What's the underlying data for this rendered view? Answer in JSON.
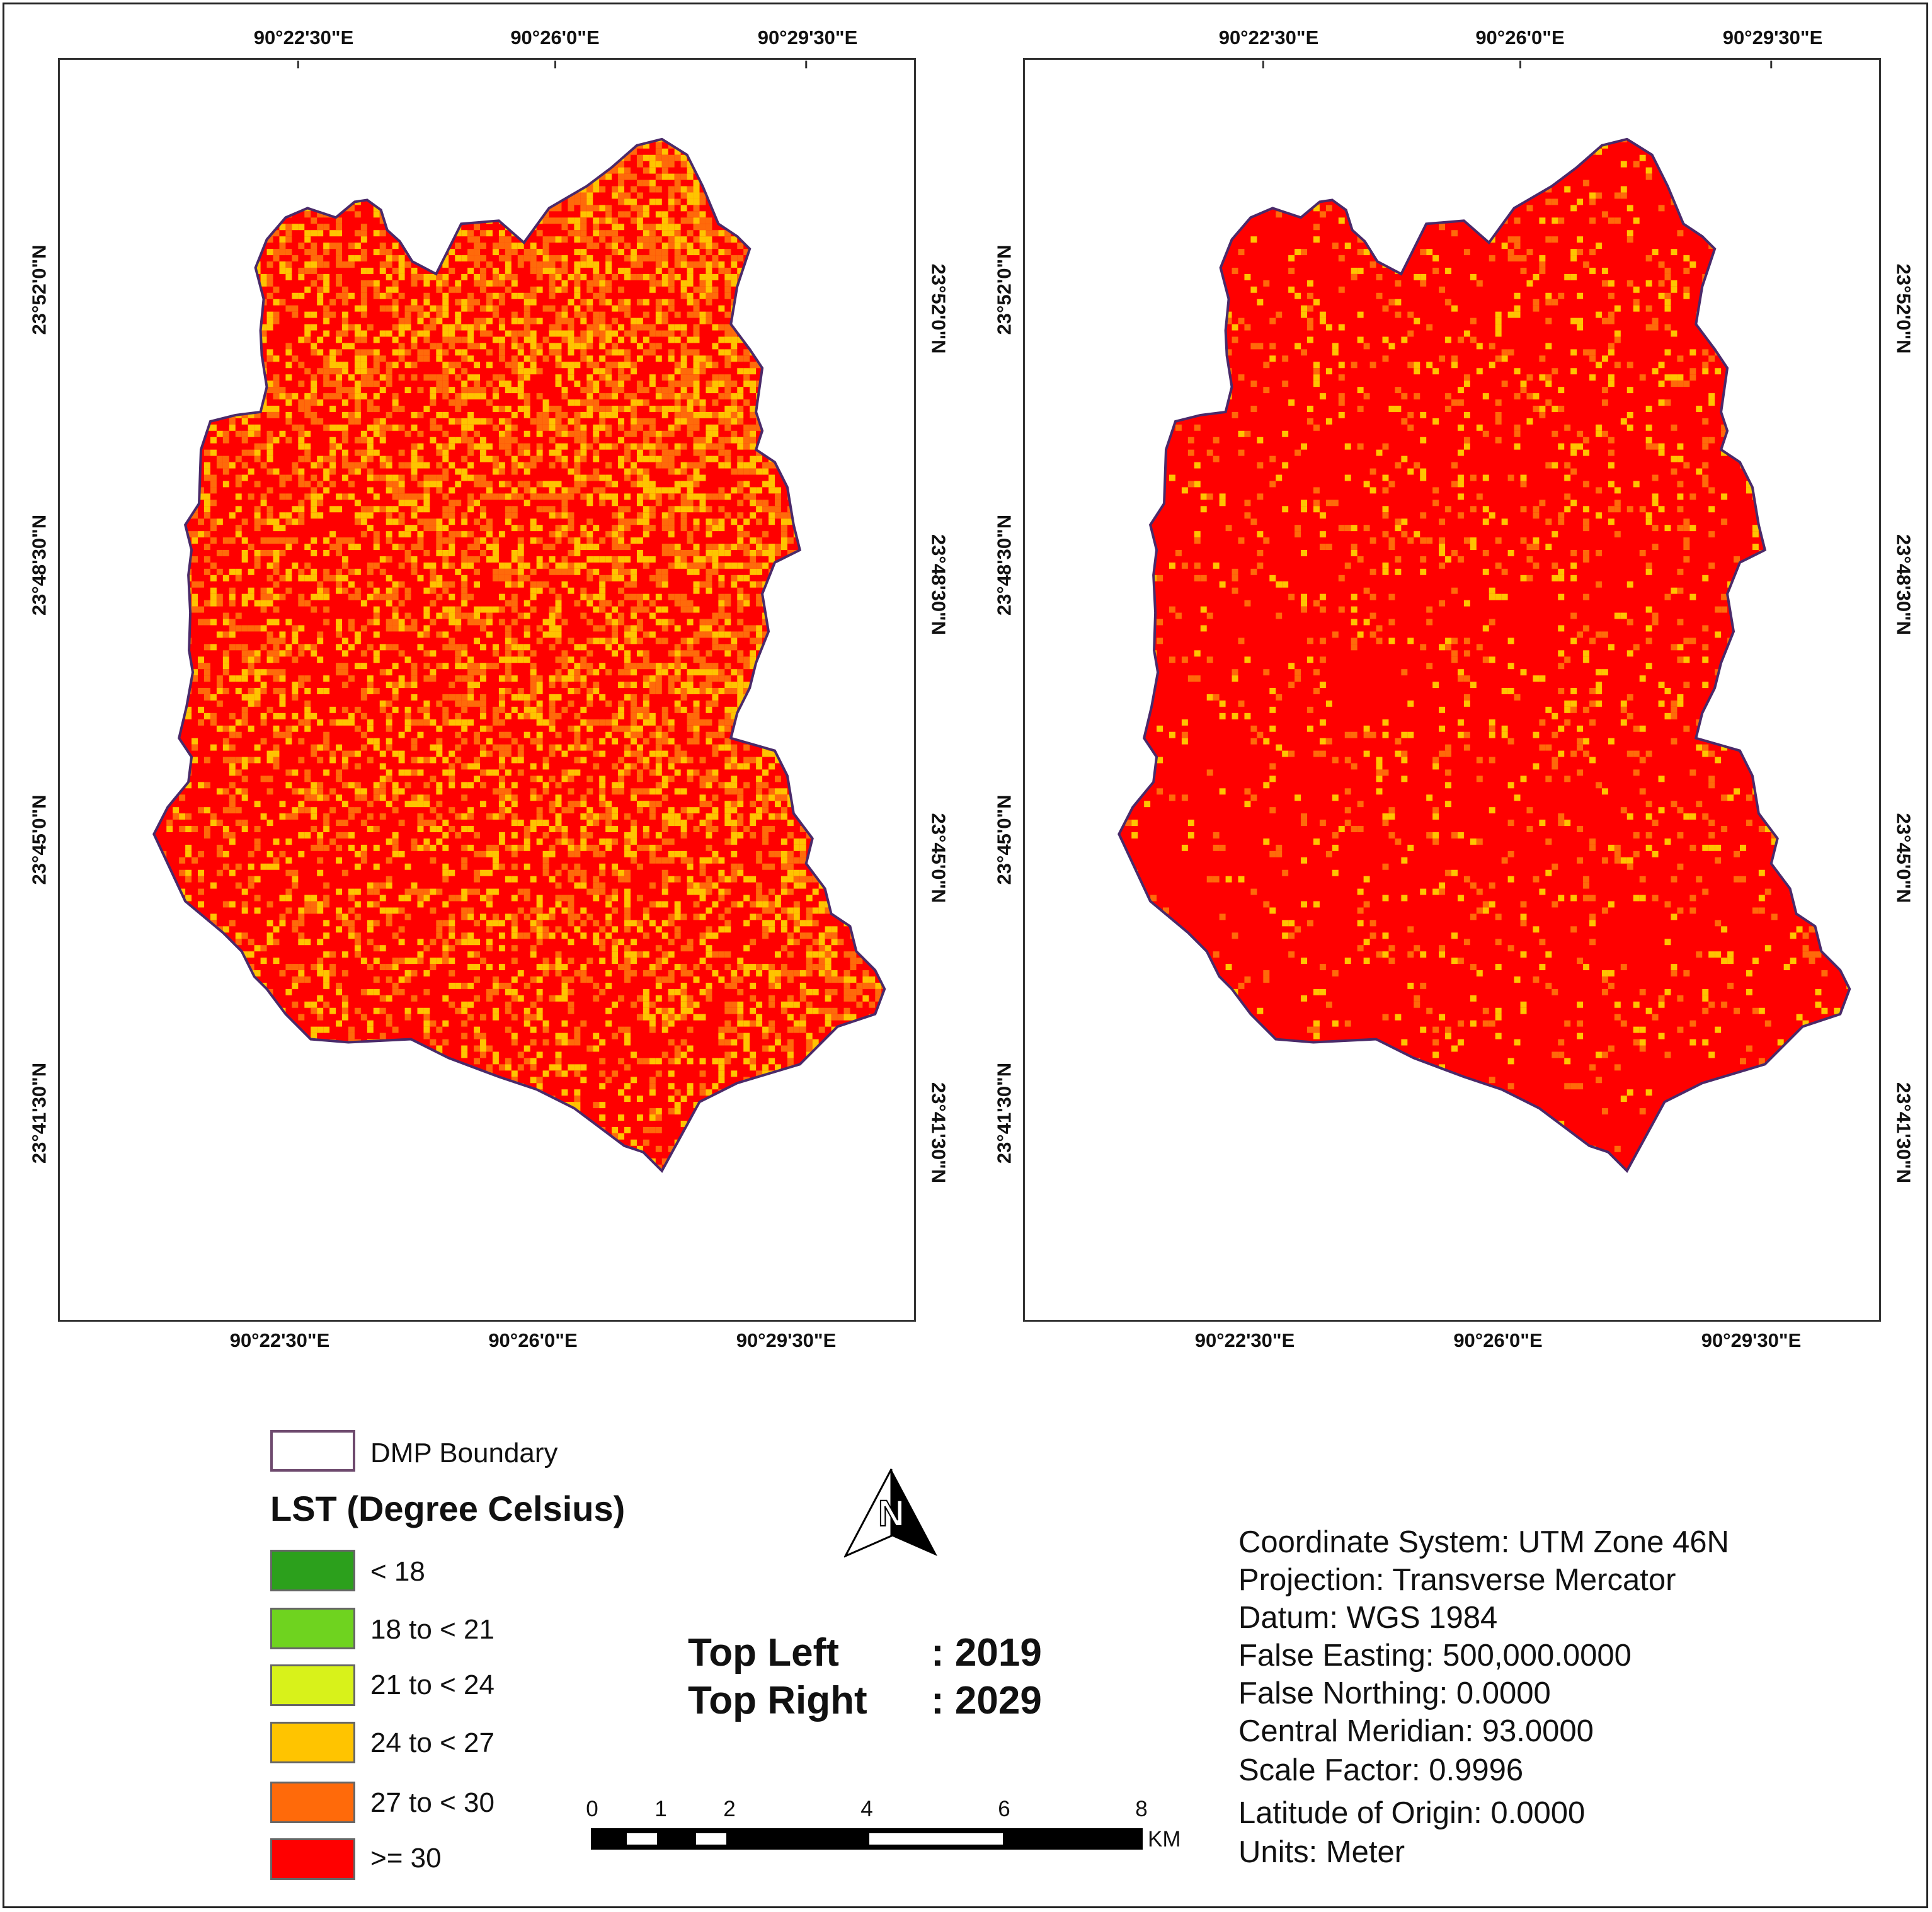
{
  "legend": {
    "boundary_label": "DMP Boundary",
    "title": "LST (Degree Celsius)",
    "classes": [
      {
        "label": "< 18",
        "color": "#2ca01c"
      },
      {
        "label": "18 to < 21",
        "color": "#6fd31f"
      },
      {
        "label": "21 to < 24",
        "color": "#d8f21a"
      },
      {
        "label": "24 to < 27",
        "color": "#ffc400"
      },
      {
        "label": "27 to < 30",
        "color": "#ff6a0a"
      },
      {
        "label": ">= 30",
        "color": "#ff0000"
      }
    ]
  },
  "maps": {
    "top_labels": [
      "90°22'30\"E",
      "90°26'0\"E",
      "90°29'30\"E"
    ],
    "bottom_labels": [
      "90°22'30\"E",
      "90°26'0\"E",
      "90°29'30\"E"
    ],
    "lat_labels": [
      "23°52'0\"N",
      "23°48'30\"N",
      "23°45'0\"N",
      "23°41'30\"N"
    ]
  },
  "years": {
    "left_label": "Top Left",
    "left_value": ": 2019",
    "right_label": "Top Right",
    "right_value": ": 2029"
  },
  "north_arrow": "N",
  "scale_bar": {
    "ticks": [
      "0",
      "1",
      "2",
      "4",
      "6",
      "8"
    ],
    "unit": "KM"
  },
  "projection_info": [
    "Coordinate System: UTM Zone 46N",
    "Projection: Transverse Mercator",
    "Datum: WGS 1984",
    "False Easting: 500,000.0000",
    "False Northing: 0.0000",
    "Central Meridian: 93.0000",
    "Scale Factor: 0.9996",
    "Latitude of Origin: 0.0000",
    "Units: Meter"
  ],
  "colors": {
    "boundary": "#4a2a6a",
    "frame": "#222222"
  }
}
